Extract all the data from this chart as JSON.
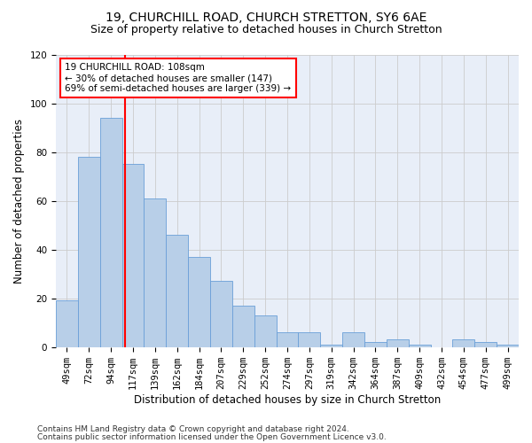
{
  "title1": "19, CHURCHILL ROAD, CHURCH STRETTON, SY6 6AE",
  "title2": "Size of property relative to detached houses in Church Stretton",
  "xlabel": "Distribution of detached houses by size in Church Stretton",
  "ylabel": "Number of detached properties",
  "categories": [
    "49sqm",
    "72sqm",
    "94sqm",
    "117sqm",
    "139sqm",
    "162sqm",
    "184sqm",
    "207sqm",
    "229sqm",
    "252sqm",
    "274sqm",
    "297sqm",
    "319sqm",
    "342sqm",
    "364sqm",
    "387sqm",
    "409sqm",
    "432sqm",
    "454sqm",
    "477sqm",
    "499sqm"
  ],
  "values": [
    19,
    78,
    94,
    75,
    61,
    46,
    37,
    27,
    17,
    13,
    6,
    6,
    1,
    6,
    2,
    3,
    1,
    0,
    3,
    2,
    1
  ],
  "bar_color": "#b8cfe8",
  "bar_edge_color": "#6a9fd8",
  "vline_color": "red",
  "vline_x": 2.62,
  "annotation_text": "19 CHURCHILL ROAD: 108sqm\n← 30% of detached houses are smaller (147)\n69% of semi-detached houses are larger (339) →",
  "annotation_box_color": "white",
  "annotation_box_edge_color": "red",
  "ylim": [
    0,
    120
  ],
  "yticks": [
    0,
    20,
    40,
    60,
    80,
    100,
    120
  ],
  "grid_color": "#cccccc",
  "bg_color": "#e8eef8",
  "footer1": "Contains HM Land Registry data © Crown copyright and database right 2024.",
  "footer2": "Contains public sector information licensed under the Open Government Licence v3.0.",
  "title1_fontsize": 10,
  "title2_fontsize": 9,
  "xlabel_fontsize": 8.5,
  "ylabel_fontsize": 8.5,
  "tick_fontsize": 7.5,
  "annot_fontsize": 7.5,
  "footer_fontsize": 6.5
}
